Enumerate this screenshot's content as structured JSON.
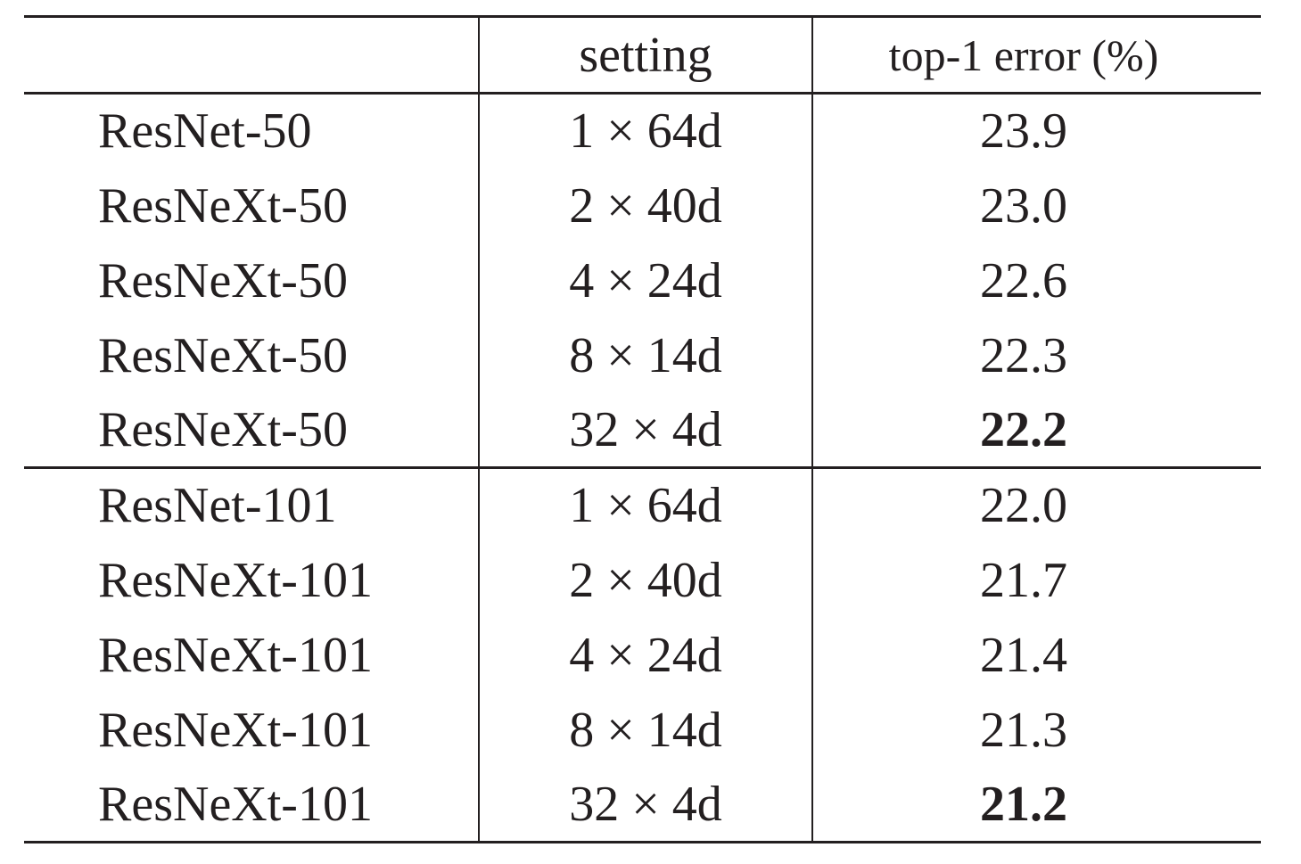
{
  "table": {
    "headers": [
      "",
      "setting",
      "top-1 error (%)"
    ],
    "groups": [
      [
        {
          "model": "ResNet-50",
          "setting": "1 × 64d",
          "error": "23.9",
          "best": false
        },
        {
          "model": "ResNeXt-50",
          "setting": "2 × 40d",
          "error": "23.0",
          "best": false
        },
        {
          "model": "ResNeXt-50",
          "setting": "4 × 24d",
          "error": "22.6",
          "best": false
        },
        {
          "model": "ResNeXt-50",
          "setting": "8 × 14d",
          "error": "22.3",
          "best": false
        },
        {
          "model": "ResNeXt-50",
          "setting": "32 × 4d",
          "error": "22.2",
          "best": true
        }
      ],
      [
        {
          "model": "ResNet-101",
          "setting": "1 × 64d",
          "error": "22.0",
          "best": false
        },
        {
          "model": "ResNeXt-101",
          "setting": "2 × 40d",
          "error": "21.7",
          "best": false
        },
        {
          "model": "ResNeXt-101",
          "setting": "4 × 24d",
          "error": "21.4",
          "best": false
        },
        {
          "model": "ResNeXt-101",
          "setting": "8 × 14d",
          "error": "21.3",
          "best": false
        },
        {
          "model": "ResNeXt-101",
          "setting": "32 × 4d",
          "error": "21.2",
          "best": true
        }
      ]
    ]
  }
}
